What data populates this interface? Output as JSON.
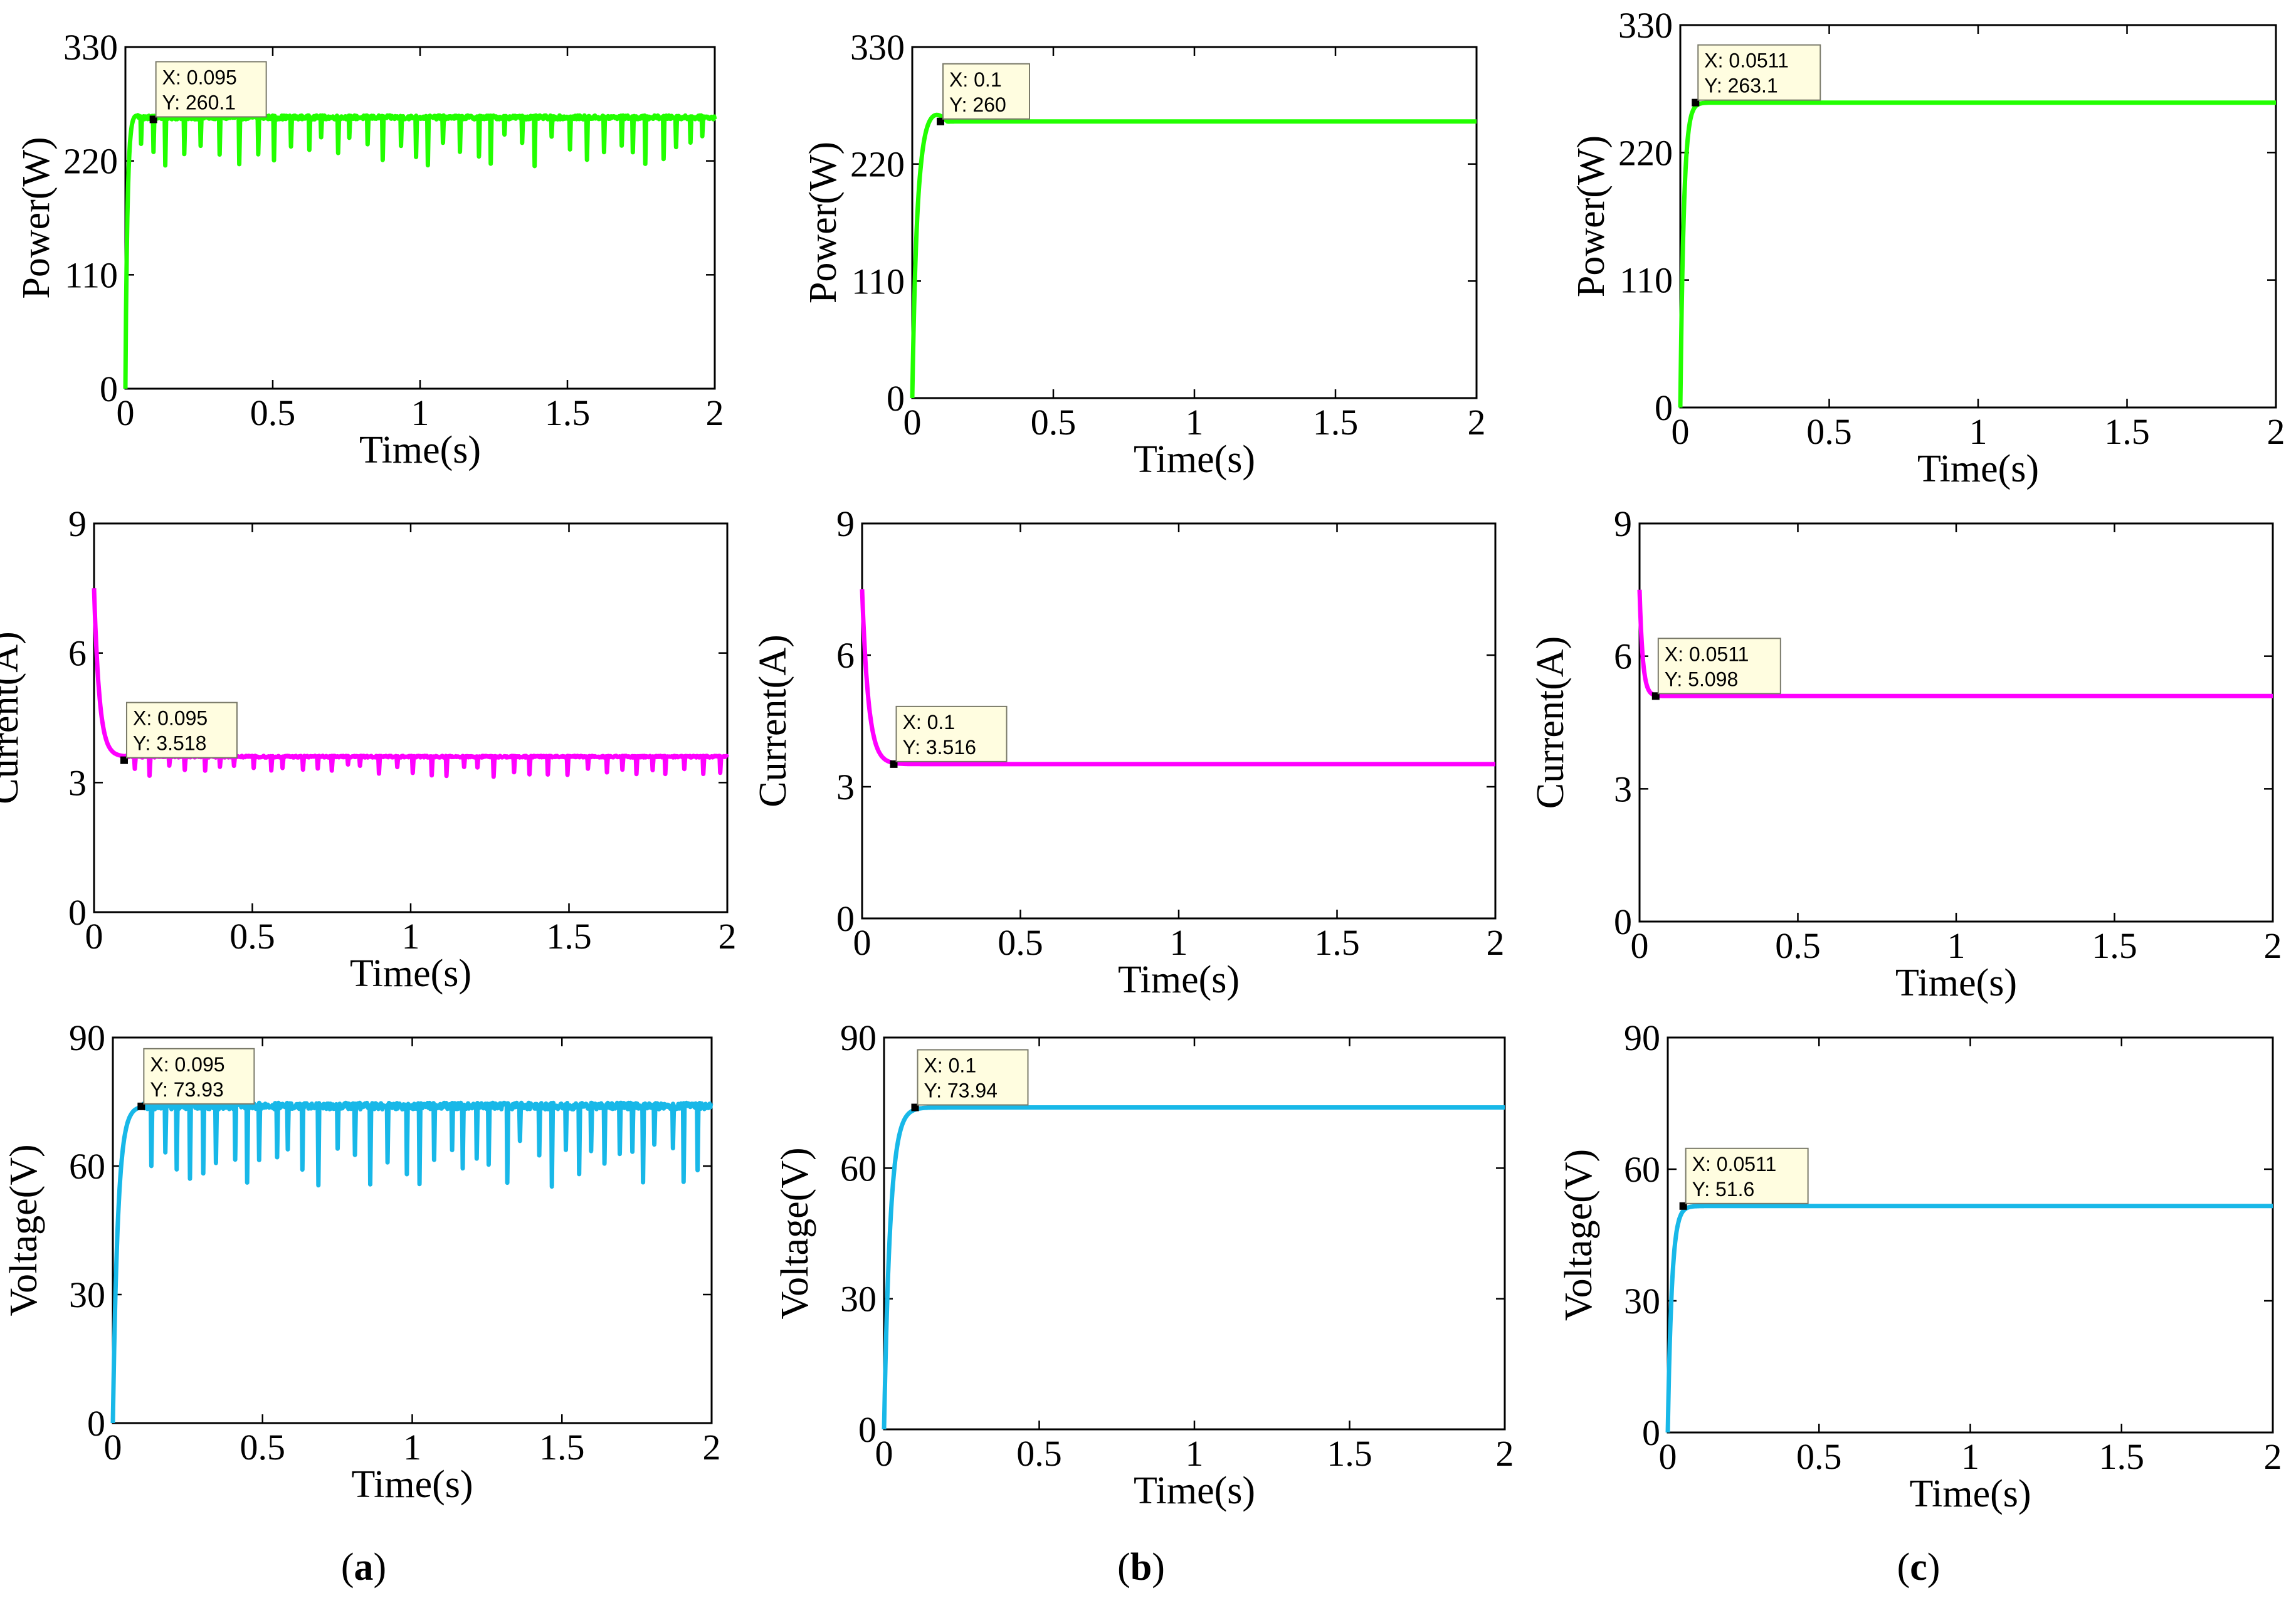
{
  "figure": {
    "captions": [
      {
        "letter": "a",
        "text_open": "(",
        "text_close": ")"
      },
      {
        "letter": "b",
        "text_open": "(",
        "text_close": ")"
      },
      {
        "letter": "c",
        "text_open": "(",
        "text_close": ")"
      }
    ]
  },
  "colors": {
    "power": "#22ff00",
    "current": "#ff00ff",
    "voltage": "#18b8e8",
    "marker": "#000000"
  },
  "chart_data": [
    {
      "id": "a-power",
      "type": "line",
      "column": "a",
      "quantity": "power",
      "xlabel": "Time(s)",
      "ylabel": "Power(W)",
      "xlim": [
        0,
        2
      ],
      "ylim": [
        0,
        330
      ],
      "xticks": [
        "0",
        "0.5",
        "1",
        "1.5",
        "2"
      ],
      "xtick_values": [
        0,
        0.5,
        1,
        1.5,
        2
      ],
      "yticks": [
        "0",
        "110",
        "220",
        "330"
      ],
      "ytick_values": [
        0,
        110,
        220,
        330
      ],
      "steady_value": 262,
      "settle_time": 0.02,
      "peak": 265,
      "oscillating": true,
      "dip_to": 215,
      "datatip": {
        "x": 0.095,
        "y": 260.1,
        "x_text": "X: 0.095",
        "y_text": "Y: 260.1"
      }
    },
    {
      "id": "b-power",
      "type": "line",
      "column": "b",
      "quantity": "power",
      "xlabel": "Time(s)",
      "ylabel": "Power(W)",
      "xlim": [
        0,
        2
      ],
      "ylim": [
        0,
        330
      ],
      "xticks": [
        "0",
        "0.5",
        "1",
        "1.5",
        "2"
      ],
      "xtick_values": [
        0,
        0.5,
        1,
        1.5,
        2
      ],
      "yticks": [
        "0",
        "110",
        "220",
        "330"
      ],
      "ytick_values": [
        0,
        110,
        220,
        330
      ],
      "steady_value": 260,
      "settle_time": 0.05,
      "peak": 268,
      "oscillating": false,
      "datatip": {
        "x": 0.1,
        "y": 260,
        "x_text": "X: 0.1",
        "y_text": "Y: 260"
      }
    },
    {
      "id": "c-power",
      "type": "line",
      "column": "c",
      "quantity": "power",
      "xlabel": "Time(s)",
      "ylabel": "Power(W)",
      "xlim": [
        0,
        2
      ],
      "ylim": [
        0,
        330
      ],
      "xticks": [
        "0",
        "0.5",
        "1",
        "1.5",
        "2"
      ],
      "xtick_values": [
        0,
        0.5,
        1,
        1.5,
        2
      ],
      "yticks": [
        "0",
        "110",
        "220",
        "330"
      ],
      "ytick_values": [
        0,
        110,
        220,
        330
      ],
      "steady_value": 263.1,
      "settle_time": 0.035,
      "peak": 263.1,
      "oscillating": false,
      "datatip": {
        "x": 0.0511,
        "y": 263.1,
        "x_text": "X: 0.0511",
        "y_text": "Y: 263.1"
      }
    },
    {
      "id": "a-current",
      "type": "line",
      "column": "a",
      "quantity": "current",
      "xlabel": "Time(s)",
      "ylabel": "Current(A)",
      "xlim": [
        0,
        2
      ],
      "ylim": [
        0,
        9
      ],
      "xticks": [
        "0",
        "0.5",
        "1",
        "1.5",
        "2"
      ],
      "xtick_values": [
        0,
        0.5,
        1,
        1.5,
        2
      ],
      "yticks": [
        "0",
        "3",
        "6",
        "9"
      ],
      "ytick_values": [
        0,
        3,
        6,
        9
      ],
      "start_value": 7.5,
      "steady_value": 3.6,
      "settle_time": 0.05,
      "oscillating": true,
      "dip_to": 3.1,
      "datatip": {
        "x": 0.095,
        "y": 3.518,
        "x_text": "X: 0.095",
        "y_text": "Y: 3.518"
      }
    },
    {
      "id": "b-current",
      "type": "line",
      "column": "b",
      "quantity": "current",
      "xlabel": "Time(s)",
      "ylabel": "Current(A)",
      "xlim": [
        0,
        2
      ],
      "ylim": [
        0,
        9
      ],
      "xticks": [
        "0",
        "0.5",
        "1",
        "1.5",
        "2"
      ],
      "xtick_values": [
        0,
        0.5,
        1,
        1.5,
        2
      ],
      "yticks": [
        "0",
        "3",
        "6",
        "9"
      ],
      "ytick_values": [
        0,
        3,
        6,
        9
      ],
      "start_value": 7.5,
      "steady_value": 3.516,
      "settle_time": 0.06,
      "oscillating": false,
      "datatip": {
        "x": 0.1,
        "y": 3.516,
        "x_text": "X: 0.1",
        "y_text": "Y: 3.516"
      }
    },
    {
      "id": "c-current",
      "type": "line",
      "column": "c",
      "quantity": "current",
      "xlabel": "Time(s)",
      "ylabel": "Current(A)",
      "xlim": [
        0,
        2
      ],
      "ylim": [
        0,
        9
      ],
      "xticks": [
        "0",
        "0.5",
        "1",
        "1.5",
        "2"
      ],
      "xtick_values": [
        0,
        0.5,
        1,
        1.5,
        2
      ],
      "yticks": [
        "0",
        "3",
        "6",
        "9"
      ],
      "ytick_values": [
        0,
        3,
        6,
        9
      ],
      "start_value": 7.5,
      "steady_value": 5.098,
      "settle_time": 0.03,
      "oscillating": false,
      "datatip": {
        "x": 0.0511,
        "y": 5.098,
        "x_text": "X: 0.0511",
        "y_text": "Y: 5.098"
      }
    },
    {
      "id": "a-voltage",
      "type": "line",
      "column": "a",
      "quantity": "voltage",
      "xlabel": "Time(s)",
      "ylabel": "Voltage(V)",
      "xlim": [
        0,
        2
      ],
      "ylim": [
        0,
        90
      ],
      "xticks": [
        "0",
        "0.5",
        "1",
        "1.5",
        "2"
      ],
      "xtick_values": [
        0,
        0.5,
        1,
        1.5,
        2
      ],
      "yticks": [
        "0",
        "30",
        "60",
        "90"
      ],
      "ytick_values": [
        0,
        30,
        60,
        90
      ],
      "steady_value": 74,
      "settle_time": 0.05,
      "oscillating": true,
      "dip_to": 55,
      "datatip": {
        "x": 0.095,
        "y": 73.93,
        "x_text": "X: 0.095",
        "y_text": "Y: 73.93"
      }
    },
    {
      "id": "b-voltage",
      "type": "line",
      "column": "b",
      "quantity": "voltage",
      "xlabel": "Time(s)",
      "ylabel": "Voltage(V)",
      "xlim": [
        0,
        2
      ],
      "ylim": [
        0,
        90
      ],
      "xticks": [
        "0",
        "0.5",
        "1",
        "1.5",
        "2"
      ],
      "xtick_values": [
        0,
        0.5,
        1,
        1.5,
        2
      ],
      "yticks": [
        "0",
        "30",
        "60",
        "90"
      ],
      "ytick_values": [
        0,
        30,
        60,
        90
      ],
      "steady_value": 73.94,
      "settle_time": 0.06,
      "oscillating": false,
      "datatip": {
        "x": 0.1,
        "y": 73.94,
        "x_text": "X: 0.1",
        "y_text": "Y: 73.94"
      }
    },
    {
      "id": "c-voltage",
      "type": "line",
      "column": "c",
      "quantity": "voltage",
      "xlabel": "Time(s)",
      "ylabel": "Voltage(V)",
      "xlim": [
        0,
        2
      ],
      "ylim": [
        0,
        90
      ],
      "xticks": [
        "0",
        "0.5",
        "1",
        "1.5",
        "2"
      ],
      "xtick_values": [
        0,
        0.5,
        1,
        1.5,
        2
      ],
      "yticks": [
        "0",
        "30",
        "60",
        "90"
      ],
      "ytick_values": [
        0,
        30,
        60,
        90
      ],
      "steady_value": 51.6,
      "settle_time": 0.04,
      "oscillating": false,
      "datatip": {
        "x": 0.0511,
        "y": 51.6,
        "x_text": "X: 0.0511",
        "y_text": "Y: 51.6"
      }
    }
  ]
}
